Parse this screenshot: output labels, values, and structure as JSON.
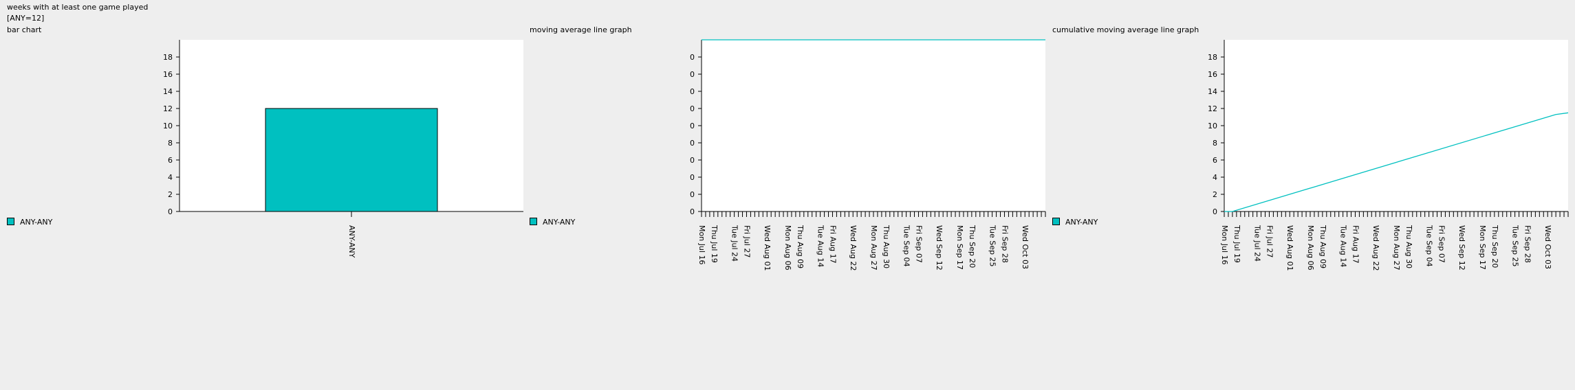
{
  "header": {
    "title": "weeks with at least one game played",
    "summary": "[ANY=12]"
  },
  "colors": {
    "series": "#00c0c0",
    "background": "#eeeeee",
    "plot_background": "#ffffff",
    "axis": "#000000"
  },
  "chart_data": [
    {
      "type": "bar",
      "title": "bar chart",
      "categories": [
        "ANY-ANY"
      ],
      "series": [
        {
          "name": "ANY-ANY",
          "values": [
            12
          ]
        }
      ],
      "ylim": [
        0,
        20
      ],
      "yticks": [
        0,
        2,
        4,
        6,
        8,
        10,
        12,
        14,
        16,
        18
      ],
      "legend": "left",
      "grid": false
    },
    {
      "type": "line",
      "title": "moving average line graph",
      "x_start": "2012-07-16",
      "x_end": "2012-10-08",
      "x_tick_interval_days": 1,
      "x_labels": [
        "Mon Jul 16",
        "Thu Jul 19",
        "Tue Jul 24",
        "Fri Jul 27",
        "Wed Aug 01",
        "Mon Aug 06",
        "Thu Aug 09",
        "Tue Aug 14",
        "Fri Aug 17",
        "Wed Aug 22",
        "Mon Aug 27",
        "Thu Aug 30",
        "Tue Sep 04",
        "Fri Sep 07",
        "Wed Sep 12",
        "Mon Sep 17",
        "Thu Sep 20",
        "Tue Sep 25",
        "Fri Sep 28",
        "Wed Oct 03"
      ],
      "series": [
        {
          "name": "ANY-ANY",
          "x": [
            "2012-07-16",
            "2012-10-08"
          ],
          "values": [
            1,
            1
          ]
        }
      ],
      "ylim": [
        0,
        1
      ],
      "ytick_labels": [
        "0",
        "0",
        "0",
        "0",
        "0",
        "0",
        "0",
        "0",
        "0",
        "0"
      ],
      "legend": "left",
      "grid": false
    },
    {
      "type": "line",
      "title": "cumulative moving average line graph",
      "x_start": "2012-07-16",
      "x_end": "2012-10-08",
      "x_tick_interval_days": 1,
      "x_labels": [
        "Mon Jul 16",
        "Thu Jul 19",
        "Tue Jul 24",
        "Fri Jul 27",
        "Wed Aug 01",
        "Mon Aug 06",
        "Thu Aug 09",
        "Tue Aug 14",
        "Fri Aug 17",
        "Wed Aug 22",
        "Mon Aug 27",
        "Thu Aug 30",
        "Tue Sep 04",
        "Fri Sep 07",
        "Wed Sep 12",
        "Mon Sep 17",
        "Thu Sep 20",
        "Tue Sep 25",
        "Fri Sep 28",
        "Wed Oct 03"
      ],
      "series": [
        {
          "name": "ANY-ANY",
          "x": [
            "2012-07-16",
            "2012-07-18",
            "2012-10-05",
            "2012-10-08"
          ],
          "values": [
            0,
            0,
            11.3,
            11.5
          ]
        }
      ],
      "ylim": [
        0,
        20
      ],
      "yticks": [
        0,
        2,
        4,
        6,
        8,
        10,
        12,
        14,
        16,
        18
      ],
      "legend": "left",
      "grid": false
    }
  ]
}
